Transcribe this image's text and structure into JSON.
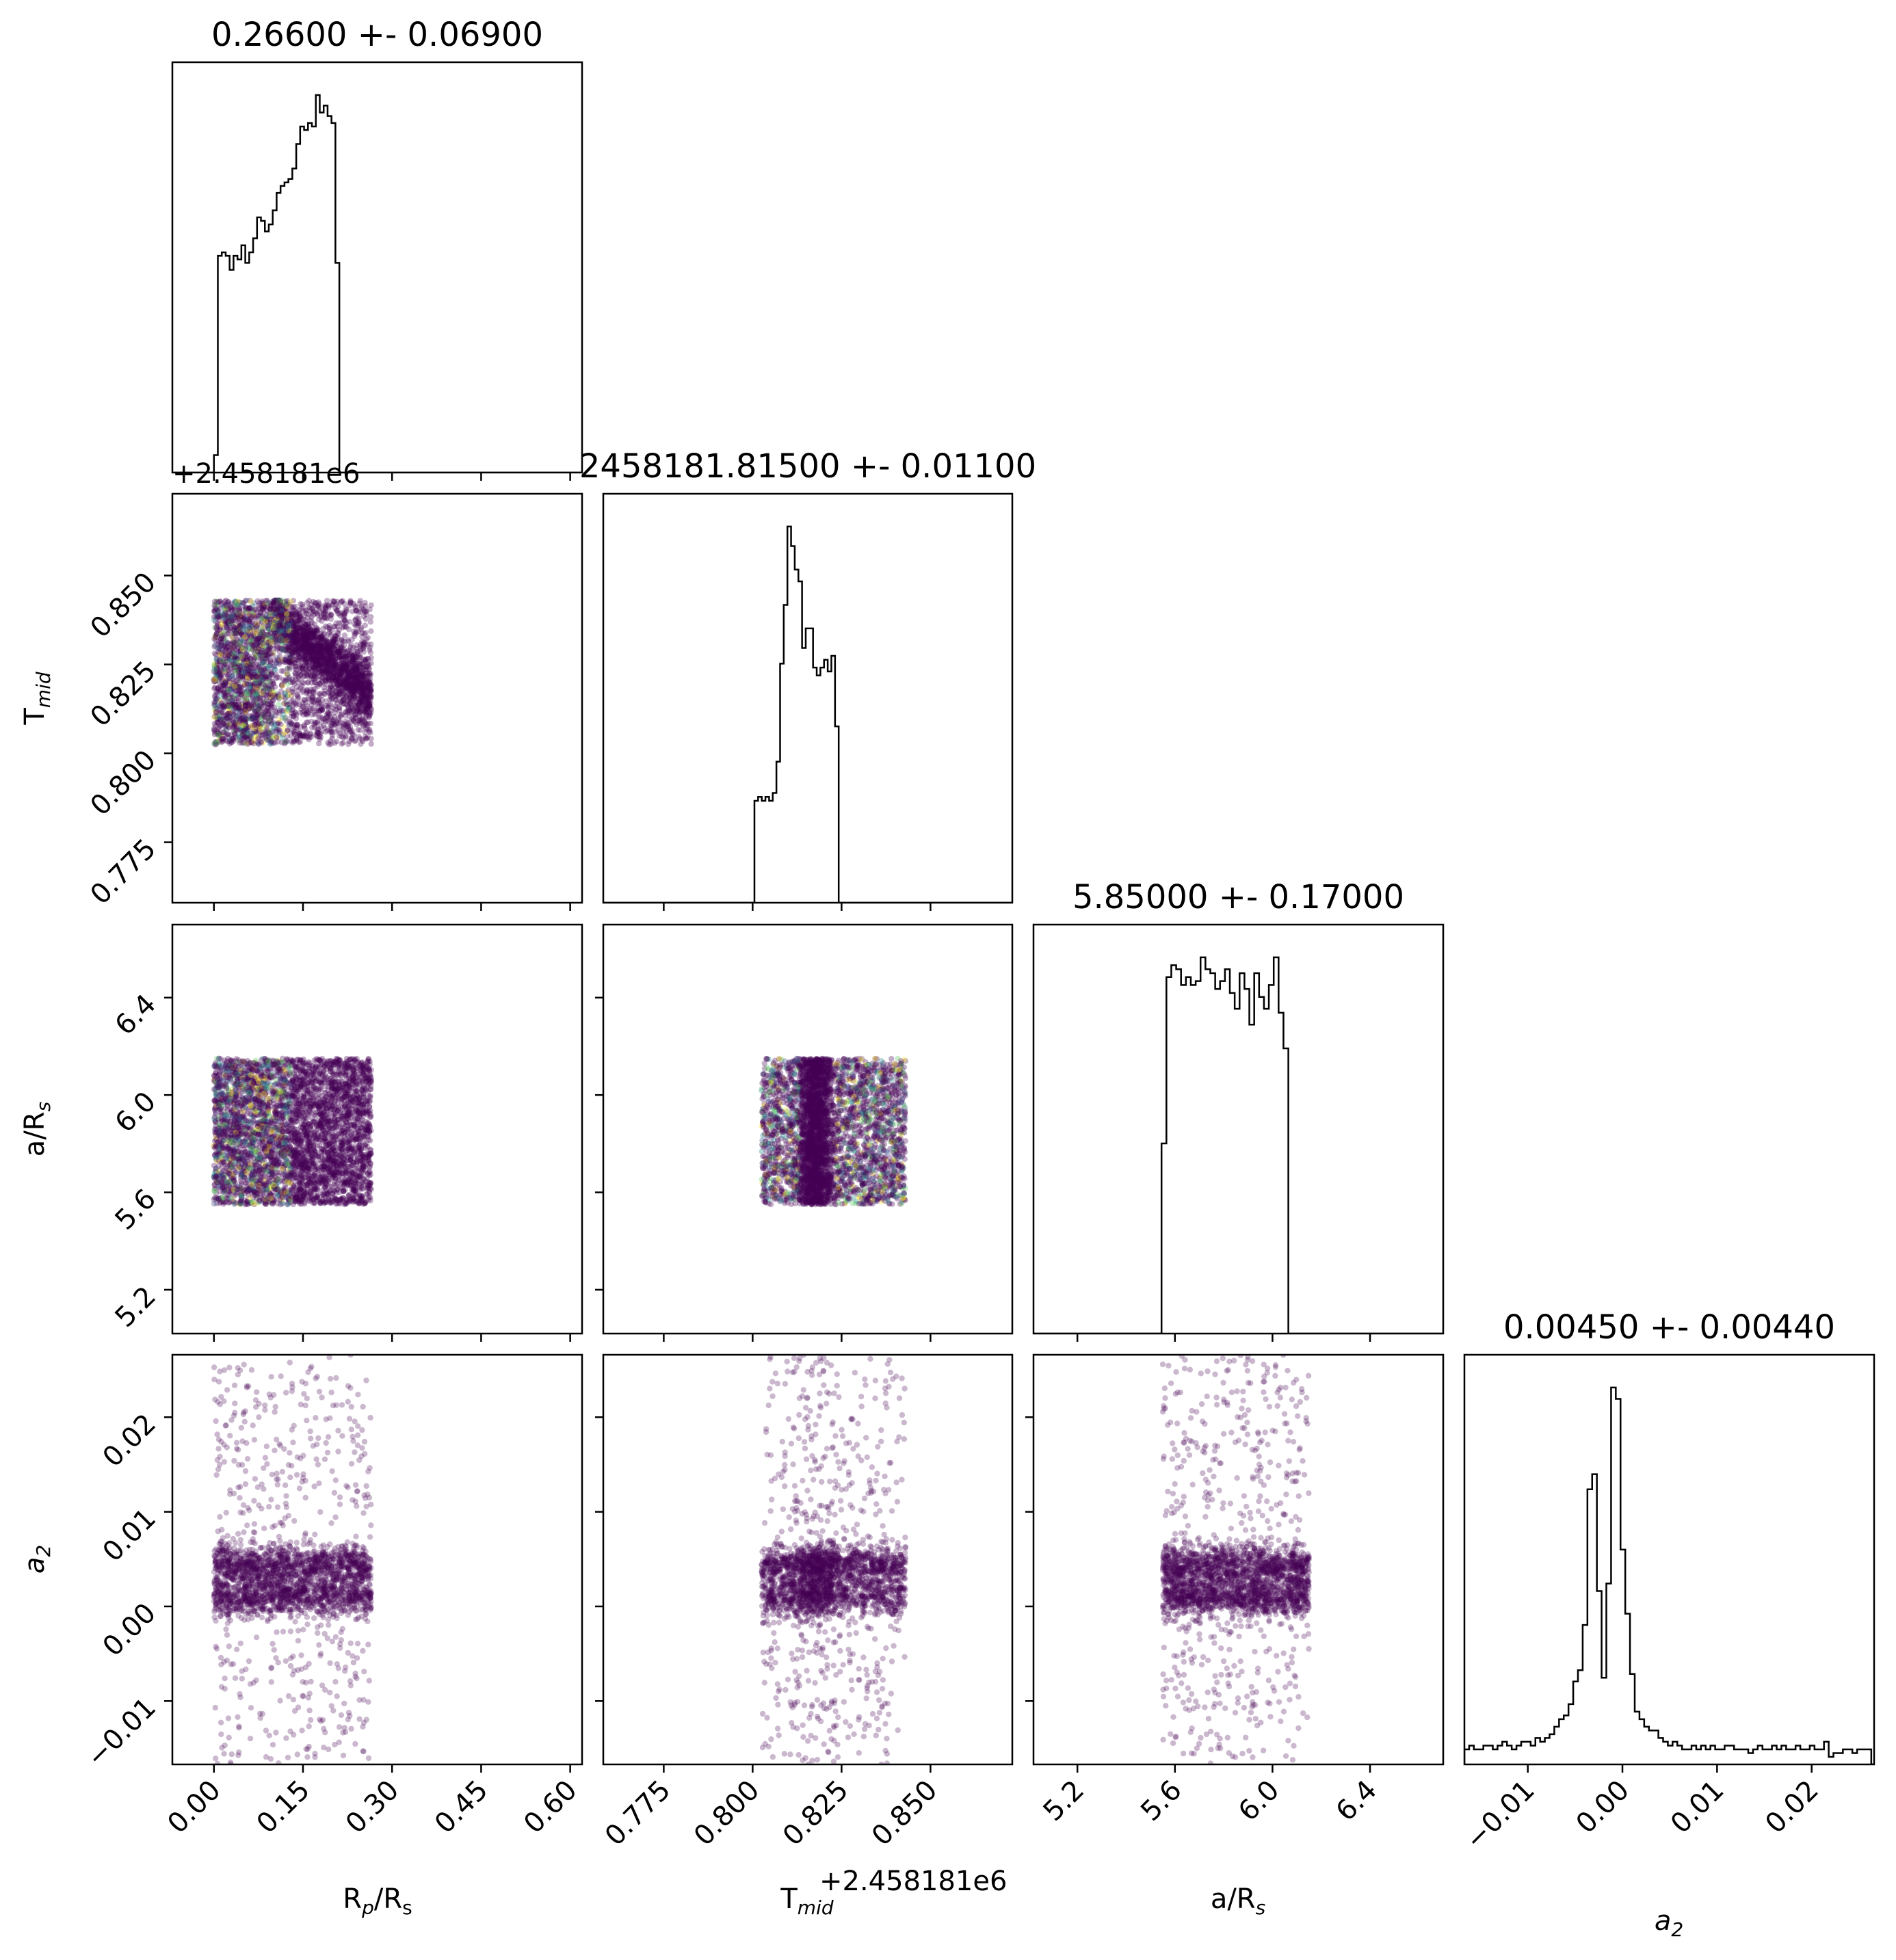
{
  "chart_data": {
    "type": "scatter",
    "kind": "corner-plot",
    "parameters": [
      {
        "key": "rp_rs",
        "label_main": "R",
        "label_sub": "p",
        "label_tail": "/R",
        "label_tail_sub": "s",
        "title": "0.26600 +- 0.06900",
        "range": [
          -0.07,
          0.62
        ],
        "ticks": [
          "0.00",
          "0.15",
          "0.30",
          "0.45",
          "0.60"
        ],
        "tick_values": [
          0,
          0.15,
          0.3,
          0.45,
          0.6
        ]
      },
      {
        "key": "tmid",
        "label_main": "T",
        "label_sub": "mid",
        "label_tail": "",
        "label_tail_sub": "",
        "title": "2458181.81500 +- 0.01100",
        "offset_text": "+2.458181e6",
        "range": [
          0.758,
          0.873
        ],
        "ticks": [
          "0.775",
          "0.800",
          "0.825",
          "0.850"
        ],
        "tick_values": [
          0.775,
          0.8,
          0.825,
          0.85
        ]
      },
      {
        "key": "a_rs",
        "label_main": "a/R",
        "label_sub": "s",
        "label_tail": "",
        "label_tail_sub": "",
        "title": "5.85000 +- 0.17000",
        "range": [
          5.02,
          6.7
        ],
        "ticks": [
          "5.2",
          "5.6",
          "6.0",
          "6.4"
        ],
        "tick_values": [
          5.2,
          5.6,
          6.0,
          6.4
        ]
      },
      {
        "key": "a2",
        "label_main": "a",
        "label_sub": "2",
        "label_tail": "",
        "label_tail_sub": "",
        "title": "0.00450 +- 0.00440",
        "range": [
          -0.0167,
          0.0266
        ],
        "ticks": [
          "−0.01",
          "0.00",
          "0.01",
          "0.02"
        ],
        "tick_values": [
          -0.01,
          0.0,
          0.01,
          0.02
        ]
      }
    ],
    "histograms": {
      "rp_rs": {
        "x0": 0.0,
        "step": 0.0066,
        "counts": [
          0.05,
          0.62,
          0.63,
          0.62,
          0.58,
          0.62,
          0.61,
          0.65,
          0.6,
          0.63,
          0.67,
          0.73,
          0.72,
          0.69,
          0.71,
          0.75,
          0.8,
          0.82,
          0.83,
          0.84,
          0.87,
          0.94,
          0.99,
          0.98,
          1.0,
          0.99,
          1.08,
          1.03,
          1.05,
          1.02,
          1.0,
          0.6,
          0.0
        ]
      },
      "tmid": {
        "x0": 0.8005,
        "step": 0.00103,
        "counts": [
          0.26,
          0.27,
          0.26,
          0.27,
          0.26,
          0.28,
          0.36,
          0.61,
          0.76,
          0.96,
          0.91,
          0.85,
          0.82,
          0.65,
          0.7,
          0.7,
          0.6,
          0.58,
          0.6,
          0.62,
          0.59,
          0.63,
          0.45,
          0.0
        ]
      },
      "a_rs": {
        "x0": 5.545,
        "step": 0.02,
        "counts": [
          0.48,
          0.9,
          0.93,
          0.92,
          0.88,
          0.9,
          0.88,
          0.89,
          0.95,
          0.92,
          0.91,
          0.87,
          0.89,
          0.92,
          0.86,
          0.82,
          0.91,
          0.87,
          0.78,
          0.91,
          0.85,
          0.82,
          0.88,
          0.95,
          0.81,
          0.72,
          0.0
        ]
      },
      "a2": {
        "x0": -0.0167,
        "step": 0.0005,
        "counts": [
          0.04,
          0.05,
          0.04,
          0.04,
          0.05,
          0.05,
          0.04,
          0.05,
          0.06,
          0.05,
          0.04,
          0.05,
          0.06,
          0.06,
          0.05,
          0.07,
          0.06,
          0.07,
          0.08,
          0.1,
          0.12,
          0.13,
          0.16,
          0.22,
          0.25,
          0.37,
          0.73,
          0.77,
          0.46,
          0.23,
          0.48,
          1.0,
          0.97,
          0.57,
          0.4,
          0.24,
          0.14,
          0.12,
          0.1,
          0.09,
          0.09,
          0.07,
          0.06,
          0.05,
          0.06,
          0.05,
          0.04,
          0.04,
          0.05,
          0.04,
          0.05,
          0.04,
          0.05,
          0.04,
          0.04,
          0.05,
          0.05,
          0.04,
          0.04,
          0.04,
          0.03,
          0.04,
          0.05,
          0.04,
          0.04,
          0.05,
          0.04,
          0.05,
          0.04,
          0.04,
          0.05,
          0.04,
          0.04,
          0.05,
          0.04,
          0.04,
          0.06,
          0.02,
          0.03,
          0.03,
          0.04,
          0.04,
          0.03,
          0.04,
          0.04,
          0.04
        ]
      }
    },
    "samples": {
      "rp_rs": {
        "distribution": "uniform",
        "range": [
          0.0,
          0.265
        ]
      },
      "tmid": {
        "distribution": "uniform",
        "range": [
          0.8025,
          0.843
        ],
        "correlation_with_rp_rs": "negative-concentration"
      },
      "a_rs": {
        "distribution": "uniform",
        "range": [
          5.55,
          6.15
        ]
      },
      "a2": {
        "distribution": "bimodal",
        "modes": [
          0.0011,
          0.0043
        ],
        "tails": [
          -0.0167,
          0.0266
        ]
      }
    },
    "colors": {
      "scatter_main": "#440154",
      "scatter_alt": [
        "#21918c",
        "#fde725",
        "#3b528b",
        "#5ec962"
      ]
    },
    "grid": false,
    "legend": "none"
  }
}
